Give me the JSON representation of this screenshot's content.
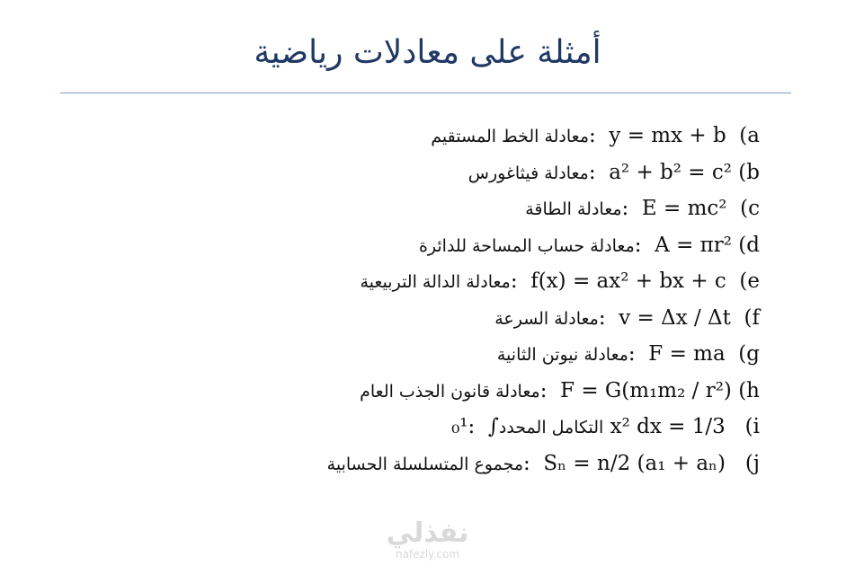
{
  "slide": {
    "title": "أمثلة على معادلات رياضية",
    "lines": [
      {
        "parts": [
          {
            "t": "معادلة الخط المستقيم",
            "ar": true
          },
          {
            "t": ":  y = mx + b  (a"
          }
        ]
      },
      {
        "parts": [
          {
            "t": "معادلة فيثاغورس",
            "ar": true
          },
          {
            "t": ":  a² + b² = c² (b"
          }
        ]
      },
      {
        "parts": [
          {
            "t": "معادلة الطاقة",
            "ar": true
          },
          {
            "t": ":  E = mc²  (c"
          }
        ]
      },
      {
        "parts": [
          {
            "t": "معادلة حساب المساحة للدائرة",
            "ar": true
          },
          {
            "t": ":  A = πr² (d"
          }
        ]
      },
      {
        "parts": [
          {
            "t": "معادلة الدالة التربيعية",
            "ar": true
          },
          {
            "t": ":  f(x) = ax² + bx + c  (e"
          }
        ]
      },
      {
        "parts": [
          {
            "t": "معادلة السرعة",
            "ar": true
          },
          {
            "t": ":  v = Δx / Δt  (f"
          }
        ]
      },
      {
        "parts": [
          {
            "t": "معادلة نيوتن الثانية",
            "ar": true
          },
          {
            "t": ":  F = ma  (g"
          }
        ]
      },
      {
        "parts": [
          {
            "t": "معادلة قانون الجذب العام",
            "ar": true
          },
          {
            "t": ":  F = G(m₁m₂ / r²) (h"
          }
        ]
      },
      {
        "parts": [
          {
            "t": "₀¹:  ∫"
          },
          {
            "t": "التكامل المحدد",
            "ar": true
          },
          {
            "t": " x² dx = 1/3   (i"
          }
        ]
      },
      {
        "parts": [
          {
            "t": "مجموع المتسلسلة الحسابية",
            "ar": true
          },
          {
            "t": ":  Sₙ = n/2 (a₁ + aₙ)   (j"
          }
        ]
      }
    ]
  },
  "watermark": {
    "logo": "نفذلي",
    "url": "nafezly.com"
  },
  "colors": {
    "title": "#1f3864",
    "rule": "#7f9cc4",
    "watermark": "#d9d9d9"
  }
}
